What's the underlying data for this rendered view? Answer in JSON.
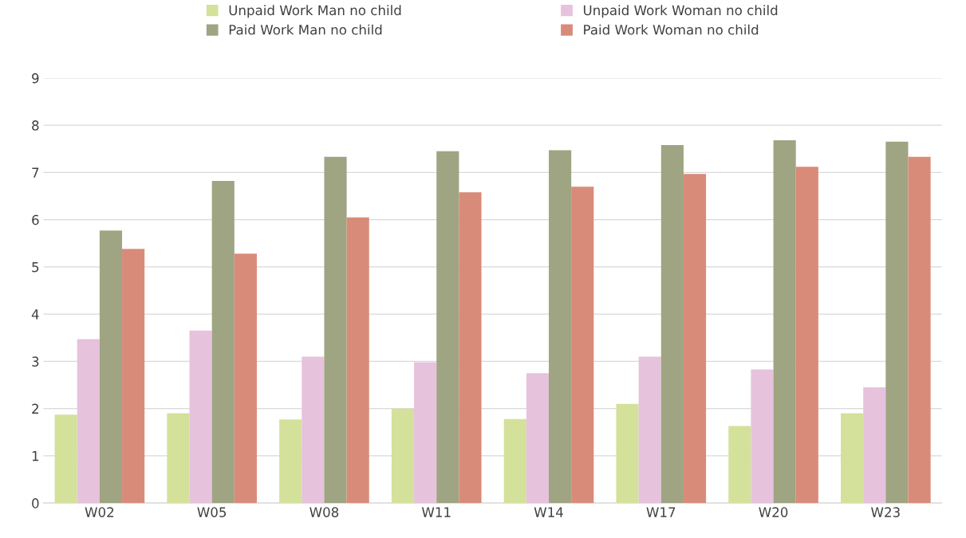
{
  "chart_data": {
    "type": "bar",
    "categories": [
      "W02",
      "W05",
      "W08",
      "W11",
      "W14",
      "W17",
      "W20",
      "W23"
    ],
    "series": [
      {
        "name": "Unpaid Work Man no child",
        "color": "#d3e19a",
        "values": [
          1.87,
          1.9,
          1.77,
          2.0,
          1.78,
          2.1,
          1.63,
          1.9
        ]
      },
      {
        "name": "Unpaid Work Woman no child",
        "color": "#e6c2dd",
        "values": [
          3.47,
          3.65,
          3.1,
          2.98,
          2.75,
          3.1,
          2.83,
          2.45
        ]
      },
      {
        "name": "Paid Work Man no child",
        "color": "#9fa482",
        "values": [
          5.77,
          6.82,
          7.33,
          7.45,
          7.47,
          7.58,
          7.68,
          7.65
        ]
      },
      {
        "name": "Paid Work Woman no child",
        "color": "#d98b79",
        "values": [
          5.38,
          5.28,
          6.05,
          6.58,
          6.7,
          6.97,
          7.12,
          7.33
        ]
      }
    ],
    "ylim": [
      0,
      9
    ],
    "yticks": [
      0,
      1,
      2,
      3,
      4,
      5,
      6,
      7,
      8,
      9
    ],
    "grid": "y",
    "legend": "top"
  }
}
